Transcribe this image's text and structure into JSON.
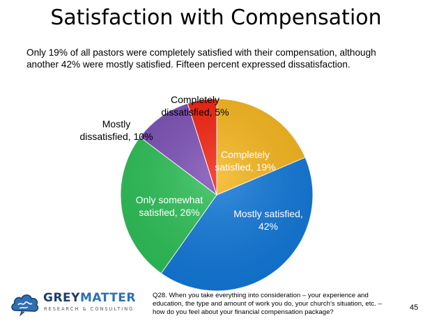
{
  "chart_data": {
    "type": "pie",
    "title": "Satisfaction with Compensation",
    "subtitle": [
      "Only 19% of all pastors were completely satisfied with their compensation, although",
      "another 42% were mostly satisfied.  Fifteen percent expressed dissatisfaction."
    ],
    "start_angle_deg": 0,
    "direction": "clockwise",
    "slices": [
      {
        "name": "Completely satisfied",
        "value": 19,
        "color": "#f5b51b",
        "label_lines": [
          "Completely",
          "satisfied, 19%"
        ],
        "label_color": "#ffffff"
      },
      {
        "name": "Mostly satisfied",
        "value": 42,
        "color": "#1278d8",
        "label_lines": [
          "Mostly satisfied,",
          "42%"
        ],
        "label_color": "#ffffff"
      },
      {
        "name": "Only somewhat satisfied",
        "value": 26,
        "color": "#2dbf57",
        "label_lines": [
          "Only somewhat",
          "satisfied, 26%"
        ],
        "label_color": "#ffffff"
      },
      {
        "name": "Mostly dissatisfied",
        "value": 10,
        "color": "#7b4fb5",
        "label_lines": [
          "Mostly",
          "dissatisfied, 10%"
        ],
        "label_color": "#000000"
      },
      {
        "name": "Completely dissatisfied",
        "value": 5,
        "color": "#f2200c",
        "label_lines": [
          "Completely",
          "dissatisfied, 5%"
        ],
        "label_color": "#000000"
      }
    ]
  },
  "footer": {
    "question_lines": [
      "Q28. When you take everything into consideration – your experience and",
      "education, the type and amount of work you do, your church’s situation, etc. –",
      "how do you feel about your financial compensation package?"
    ],
    "page_number": "45"
  },
  "logo": {
    "name_part1": "GREY",
    "name_part2": "MATTER",
    "tagline": "RESEARCH & CONSULTING",
    "icon": "brain-cloud-icon"
  }
}
